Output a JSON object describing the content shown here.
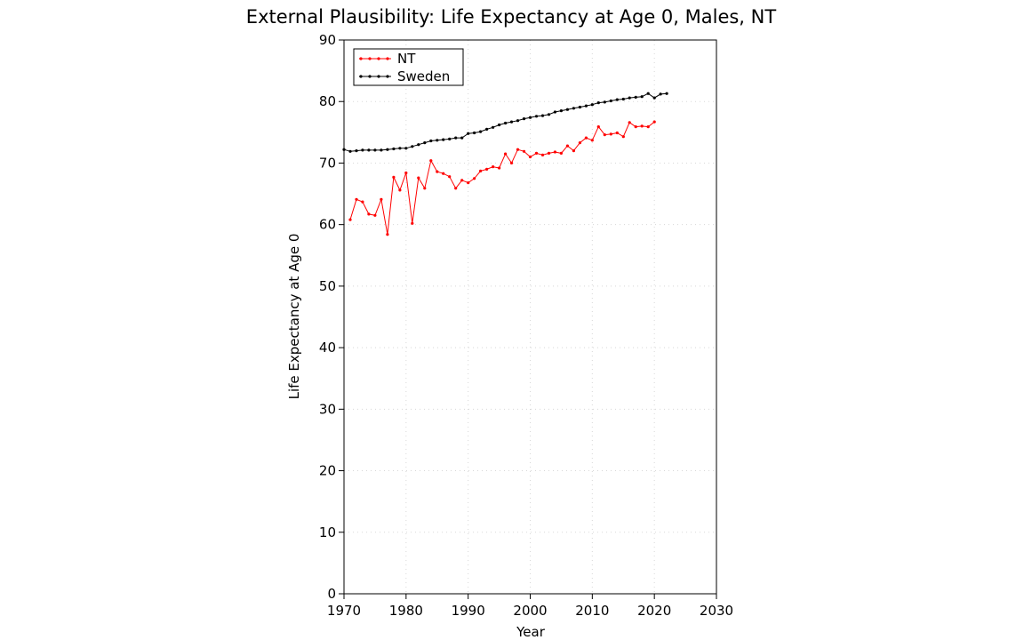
{
  "chart_data": {
    "type": "line",
    "title": "External Plausibility: Life Expectancy at Age 0, Males, NT",
    "xlabel": "Year",
    "ylabel": "Life Expectancy at Age 0",
    "xlim": [
      1970,
      2030
    ],
    "ylim": [
      0,
      90
    ],
    "xticks": [
      1970,
      1980,
      1990,
      2000,
      2010,
      2020,
      2030
    ],
    "yticks": [
      0,
      10,
      20,
      30,
      40,
      50,
      60,
      70,
      80,
      90
    ],
    "grid": "dotted",
    "legend_position": "top-left",
    "series": [
      {
        "name": "NT",
        "color": "#ff0000",
        "x": [
          1971,
          1972,
          1973,
          1974,
          1975,
          1976,
          1977,
          1978,
          1979,
          1980,
          1981,
          1982,
          1983,
          1984,
          1985,
          1986,
          1987,
          1988,
          1989,
          1990,
          1991,
          1992,
          1993,
          1994,
          1995,
          1996,
          1997,
          1998,
          1999,
          2000,
          2001,
          2002,
          2003,
          2004,
          2005,
          2006,
          2007,
          2008,
          2009,
          2010,
          2011,
          2012,
          2013,
          2014,
          2015,
          2016,
          2017,
          2018,
          2019,
          2020
        ],
        "y": [
          60.8,
          64.1,
          63.7,
          61.7,
          61.5,
          64.1,
          58.4,
          67.7,
          65.6,
          68.4,
          60.2,
          67.6,
          65.9,
          70.4,
          68.6,
          68.3,
          67.8,
          65.9,
          67.2,
          66.8,
          67.5,
          68.7,
          69.0,
          69.4,
          69.2,
          71.5,
          70.0,
          72.2,
          71.9,
          71.0,
          71.6,
          71.3,
          71.6,
          71.8,
          71.6,
          72.8,
          72.0,
          73.3,
          74.1,
          73.7,
          75.9,
          74.6,
          74.7,
          74.9,
          74.3,
          76.6,
          75.9,
          76.0,
          75.9,
          76.7
        ]
      },
      {
        "name": "Sweden",
        "color": "#000000",
        "x": [
          1970,
          1971,
          1972,
          1973,
          1974,
          1975,
          1976,
          1977,
          1978,
          1979,
          1980,
          1981,
          1982,
          1983,
          1984,
          1985,
          1986,
          1987,
          1988,
          1989,
          1990,
          1991,
          1992,
          1993,
          1994,
          1995,
          1996,
          1997,
          1998,
          1999,
          2000,
          2001,
          2002,
          2003,
          2004,
          2005,
          2006,
          2007,
          2008,
          2009,
          2010,
          2011,
          2012,
          2013,
          2014,
          2015,
          2016,
          2017,
          2018,
          2019,
          2020,
          2021,
          2022
        ],
        "y": [
          72.2,
          71.9,
          72.0,
          72.1,
          72.1,
          72.1,
          72.1,
          72.2,
          72.3,
          72.4,
          72.4,
          72.7,
          73.0,
          73.3,
          73.6,
          73.7,
          73.8,
          73.9,
          74.1,
          74.1,
          74.8,
          74.9,
          75.1,
          75.5,
          75.8,
          76.2,
          76.5,
          76.7,
          76.9,
          77.2,
          77.4,
          77.6,
          77.7,
          77.9,
          78.3,
          78.5,
          78.7,
          78.9,
          79.1,
          79.3,
          79.5,
          79.8,
          79.9,
          80.1,
          80.3,
          80.4,
          80.6,
          80.7,
          80.8,
          81.3,
          80.6,
          81.2,
          81.3
        ]
      }
    ]
  }
}
